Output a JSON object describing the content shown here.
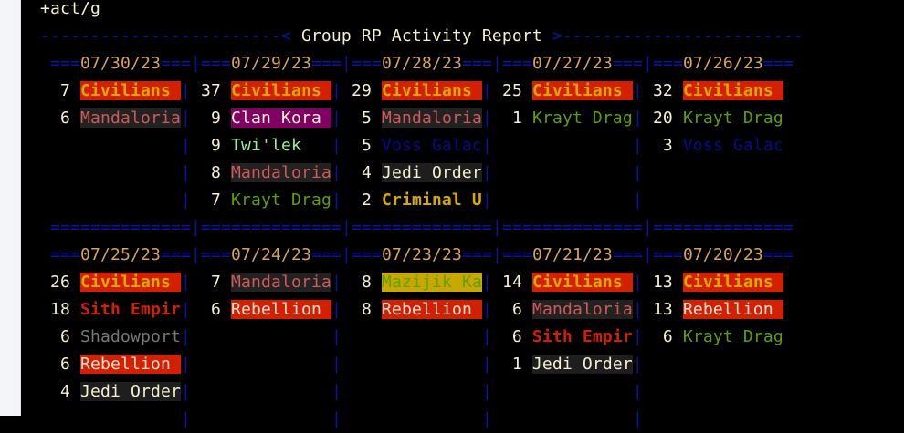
{
  "command": "+act/g",
  "title": "Group RP Activity Report",
  "colors": {
    "frame": "#0a14a8",
    "date": "#d8a45c",
    "count": "#f5f0d0"
  },
  "group_styles": {
    "Civilians": {
      "fg": "#d8aa00",
      "bg": "#d42000",
      "bold": true
    },
    "Mandaloria": {
      "fg": "#d05a5a",
      "bg": "#222222",
      "bold": false
    },
    "Clan Kora": {
      "fg": "#f5f0d0",
      "bg": "#820064",
      "bold": false
    },
    "Twi'lek": {
      "fg": "#98f098",
      "bg": "",
      "bold": false
    },
    "Krayt Drag": {
      "fg": "#5fa000",
      "bg": "",
      "bold": false
    },
    "Voss Galac": {
      "fg": "#0a0a90",
      "bg": "",
      "bold": false
    },
    "Jedi Order": {
      "fg": "#f5f0d0",
      "bg": "#1e1e1e",
      "bold": false
    },
    "Criminal U": {
      "fg": "#d8aa00",
      "bg": "",
      "bold": true
    },
    "Sith Empir": {
      "fg": "#d42000",
      "bg": "",
      "bold": true
    },
    "Shadowport": {
      "fg": "#7a7a7a",
      "bg": "",
      "bold": false
    },
    "Rebellion": {
      "fg": "#ece4d8",
      "bg": "#d42000",
      "bold": false
    },
    "Mazijik Ka": {
      "fg": "#5fa000",
      "bg": "#c8a800",
      "bold": false
    }
  },
  "blocks": [
    {
      "days": [
        {
          "date": "07/30/23",
          "entries": [
            {
              "count": "7",
              "group": "Civilians"
            },
            {
              "count": "6",
              "group": "Mandaloria"
            }
          ]
        },
        {
          "date": "07/29/23",
          "entries": [
            {
              "count": "37",
              "group": "Civilians"
            },
            {
              "count": "9",
              "group": "Clan Kora"
            },
            {
              "count": "9",
              "group": "Twi'lek"
            },
            {
              "count": "8",
              "group": "Mandaloria"
            },
            {
              "count": "7",
              "group": "Krayt Drag"
            }
          ]
        },
        {
          "date": "07/28/23",
          "entries": [
            {
              "count": "29",
              "group": "Civilians"
            },
            {
              "count": "5",
              "group": "Mandaloria"
            },
            {
              "count": "5",
              "group": "Voss Galac"
            },
            {
              "count": "4",
              "group": "Jedi Order"
            },
            {
              "count": "2",
              "group": "Criminal U"
            }
          ]
        },
        {
          "date": "07/27/23",
          "entries": [
            {
              "count": "25",
              "group": "Civilians"
            },
            {
              "count": "1",
              "group": "Krayt Drag"
            }
          ]
        },
        {
          "date": "07/26/23",
          "entries": [
            {
              "count": "32",
              "group": "Civilians"
            },
            {
              "count": "20",
              "group": "Krayt Drag"
            },
            {
              "count": "3",
              "group": "Voss Galac"
            }
          ]
        }
      ]
    },
    {
      "days": [
        {
          "date": "07/25/23",
          "entries": [
            {
              "count": "26",
              "group": "Civilians"
            },
            {
              "count": "18",
              "group": "Sith Empir"
            },
            {
              "count": "6",
              "group": "Shadowport"
            },
            {
              "count": "6",
              "group": "Rebellion"
            },
            {
              "count": "4",
              "group": "Jedi Order"
            }
          ]
        },
        {
          "date": "07/24/23",
          "entries": [
            {
              "count": "7",
              "group": "Mandaloria"
            },
            {
              "count": "6",
              "group": "Rebellion"
            }
          ]
        },
        {
          "date": "07/23/23",
          "entries": [
            {
              "count": "8",
              "group": "Mazijik Ka"
            },
            {
              "count": "8",
              "group": "Rebellion"
            }
          ]
        },
        {
          "date": "07/21/23",
          "entries": [
            {
              "count": "14",
              "group": "Civilians"
            },
            {
              "count": "6",
              "group": "Mandaloria"
            },
            {
              "count": "6",
              "group": "Sith Empir"
            },
            {
              "count": "1",
              "group": "Jedi Order"
            }
          ]
        },
        {
          "date": "07/20/23",
          "entries": [
            {
              "count": "13",
              "group": "Civilians"
            },
            {
              "count": "13",
              "group": "Rebellion"
            },
            {
              "count": "6",
              "group": "Krayt Drag"
            }
          ]
        }
      ]
    }
  ]
}
